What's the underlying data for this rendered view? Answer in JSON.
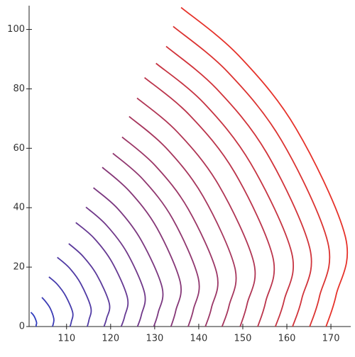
{
  "chart_data": {
    "type": "line",
    "xlim": [
      101.5,
      174.5
    ],
    "ylim": [
      0,
      108
    ],
    "xticks": [
      110,
      120,
      130,
      140,
      150,
      160,
      170
    ],
    "yticks": [
      0,
      20,
      40,
      60,
      80,
      100
    ],
    "series": [
      {
        "color": "#303cbe",
        "x": [
          101.9,
          102.4,
          102.8,
          103.2,
          103.1,
          103.1
        ],
        "values": [
          4.8,
          4.0,
          3.0,
          1.3,
          0.5,
          0
        ]
      },
      {
        "color": "#3b3bb5",
        "x": [
          104.4,
          105.3,
          106.3,
          107.1,
          107.0,
          106.8
        ],
        "values": [
          9.8,
          8.3,
          6.1,
          2.7,
          1.0,
          0
        ]
      },
      {
        "color": "#453bac",
        "x": [
          106.0,
          107.9,
          109.8,
          111.4,
          111.1,
          110.8
        ],
        "values": [
          16.7,
          14.2,
          10.3,
          4.7,
          1.7,
          0
        ]
      },
      {
        "color": "#503aa4",
        "x": [
          107.9,
          110.6,
          113.2,
          115.5,
          115.1,
          114.7
        ],
        "values": [
          23.3,
          19.8,
          14.5,
          6.5,
          2.3,
          0
        ]
      },
      {
        "color": "#5b3a9b",
        "x": [
          110.5,
          113.7,
          116.9,
          119.7,
          119.1,
          118.5
        ],
        "values": [
          27.9,
          23.7,
          17.3,
          7.8,
          2.8,
          0
        ]
      },
      {
        "color": "#663992",
        "x": [
          112.1,
          116.2,
          120.3,
          123.8,
          123.2,
          122.4
        ],
        "values": [
          35,
          29.8,
          21.7,
          9.8,
          3.5,
          0
        ]
      },
      {
        "color": "#703889",
        "x": [
          114.4,
          119.0,
          123.7,
          127.7,
          127.0,
          126.1
        ],
        "values": [
          40.2,
          34.2,
          24.9,
          11.3,
          4.0,
          0
        ]
      },
      {
        "color": "#7b3880",
        "x": [
          116.1,
          121.6,
          127.0,
          131.7,
          130.8,
          129.8
        ],
        "values": [
          46.7,
          39.7,
          28.9,
          13.1,
          4.7,
          0
        ]
      },
      {
        "color": "#863777",
        "x": [
          118.1,
          124.3,
          130.5,
          135.8,
          134.8,
          133.7
        ],
        "values": [
          53.6,
          45.5,
          33.2,
          15.0,
          5.4,
          0
        ]
      },
      {
        "color": "#90376f",
        "x": [
          120.5,
          127.3,
          134.1,
          139.9,
          138.8,
          137.6
        ],
        "values": [
          58.3,
          49.6,
          36.2,
          16.3,
          5.8,
          0
        ]
      },
      {
        "color": "#9b3666",
        "x": [
          122.6,
          130.1,
          137.6,
          144.1,
          142.9,
          141.5
        ],
        "values": [
          63.8,
          54.2,
          39.6,
          17.9,
          6.4,
          0
        ]
      },
      {
        "color": "#a6365d",
        "x": [
          124.2,
          132.6,
          141.0,
          148.2,
          146.9,
          145.3
        ],
        "values": [
          70.7,
          60.1,
          43.8,
          19.8,
          7.1,
          0
        ]
      },
      {
        "color": "#b03554",
        "x": [
          126.0,
          135.2,
          144.5,
          152.5,
          151.0,
          149.4
        ],
        "values": [
          76.9,
          65.4,
          47.7,
          21.5,
          7.7,
          0
        ]
      },
      {
        "color": "#bb344b",
        "x": [
          127.7,
          137.9,
          148.1,
          156.8,
          155.2,
          153.4
        ],
        "values": [
          83.8,
          71.2,
          52.0,
          23.5,
          8.4,
          0
        ]
      },
      {
        "color": "#c63442",
        "x": [
          130.3,
          141.1,
          151.8,
          161.1,
          159.4,
          157.4
        ],
        "values": [
          88.6,
          75.3,
          54.9,
          24.8,
          8.9,
          0
        ]
      },
      {
        "color": "#d1333a",
        "x": [
          132.6,
          144.0,
          155.4,
          165.2,
          163.4,
          161.3
        ],
        "values": [
          94.3,
          80.1,
          58.5,
          26.4,
          9.4,
          0
        ]
      },
      {
        "color": "#db3331",
        "x": [
          134.2,
          146.5,
          158.8,
          169.3,
          167.4,
          165.2
        ],
        "values": [
          101.0,
          85.8,
          62.6,
          28.3,
          10.1,
          0
        ]
      },
      {
        "color": "#e6322a",
        "x": [
          136.0,
          149.0,
          162.1,
          173.3,
          171.2,
          168.9
        ],
        "values": [
          107.4,
          91.3,
          66.6,
          30.1,
          10.7,
          0
        ]
      }
    ]
  }
}
